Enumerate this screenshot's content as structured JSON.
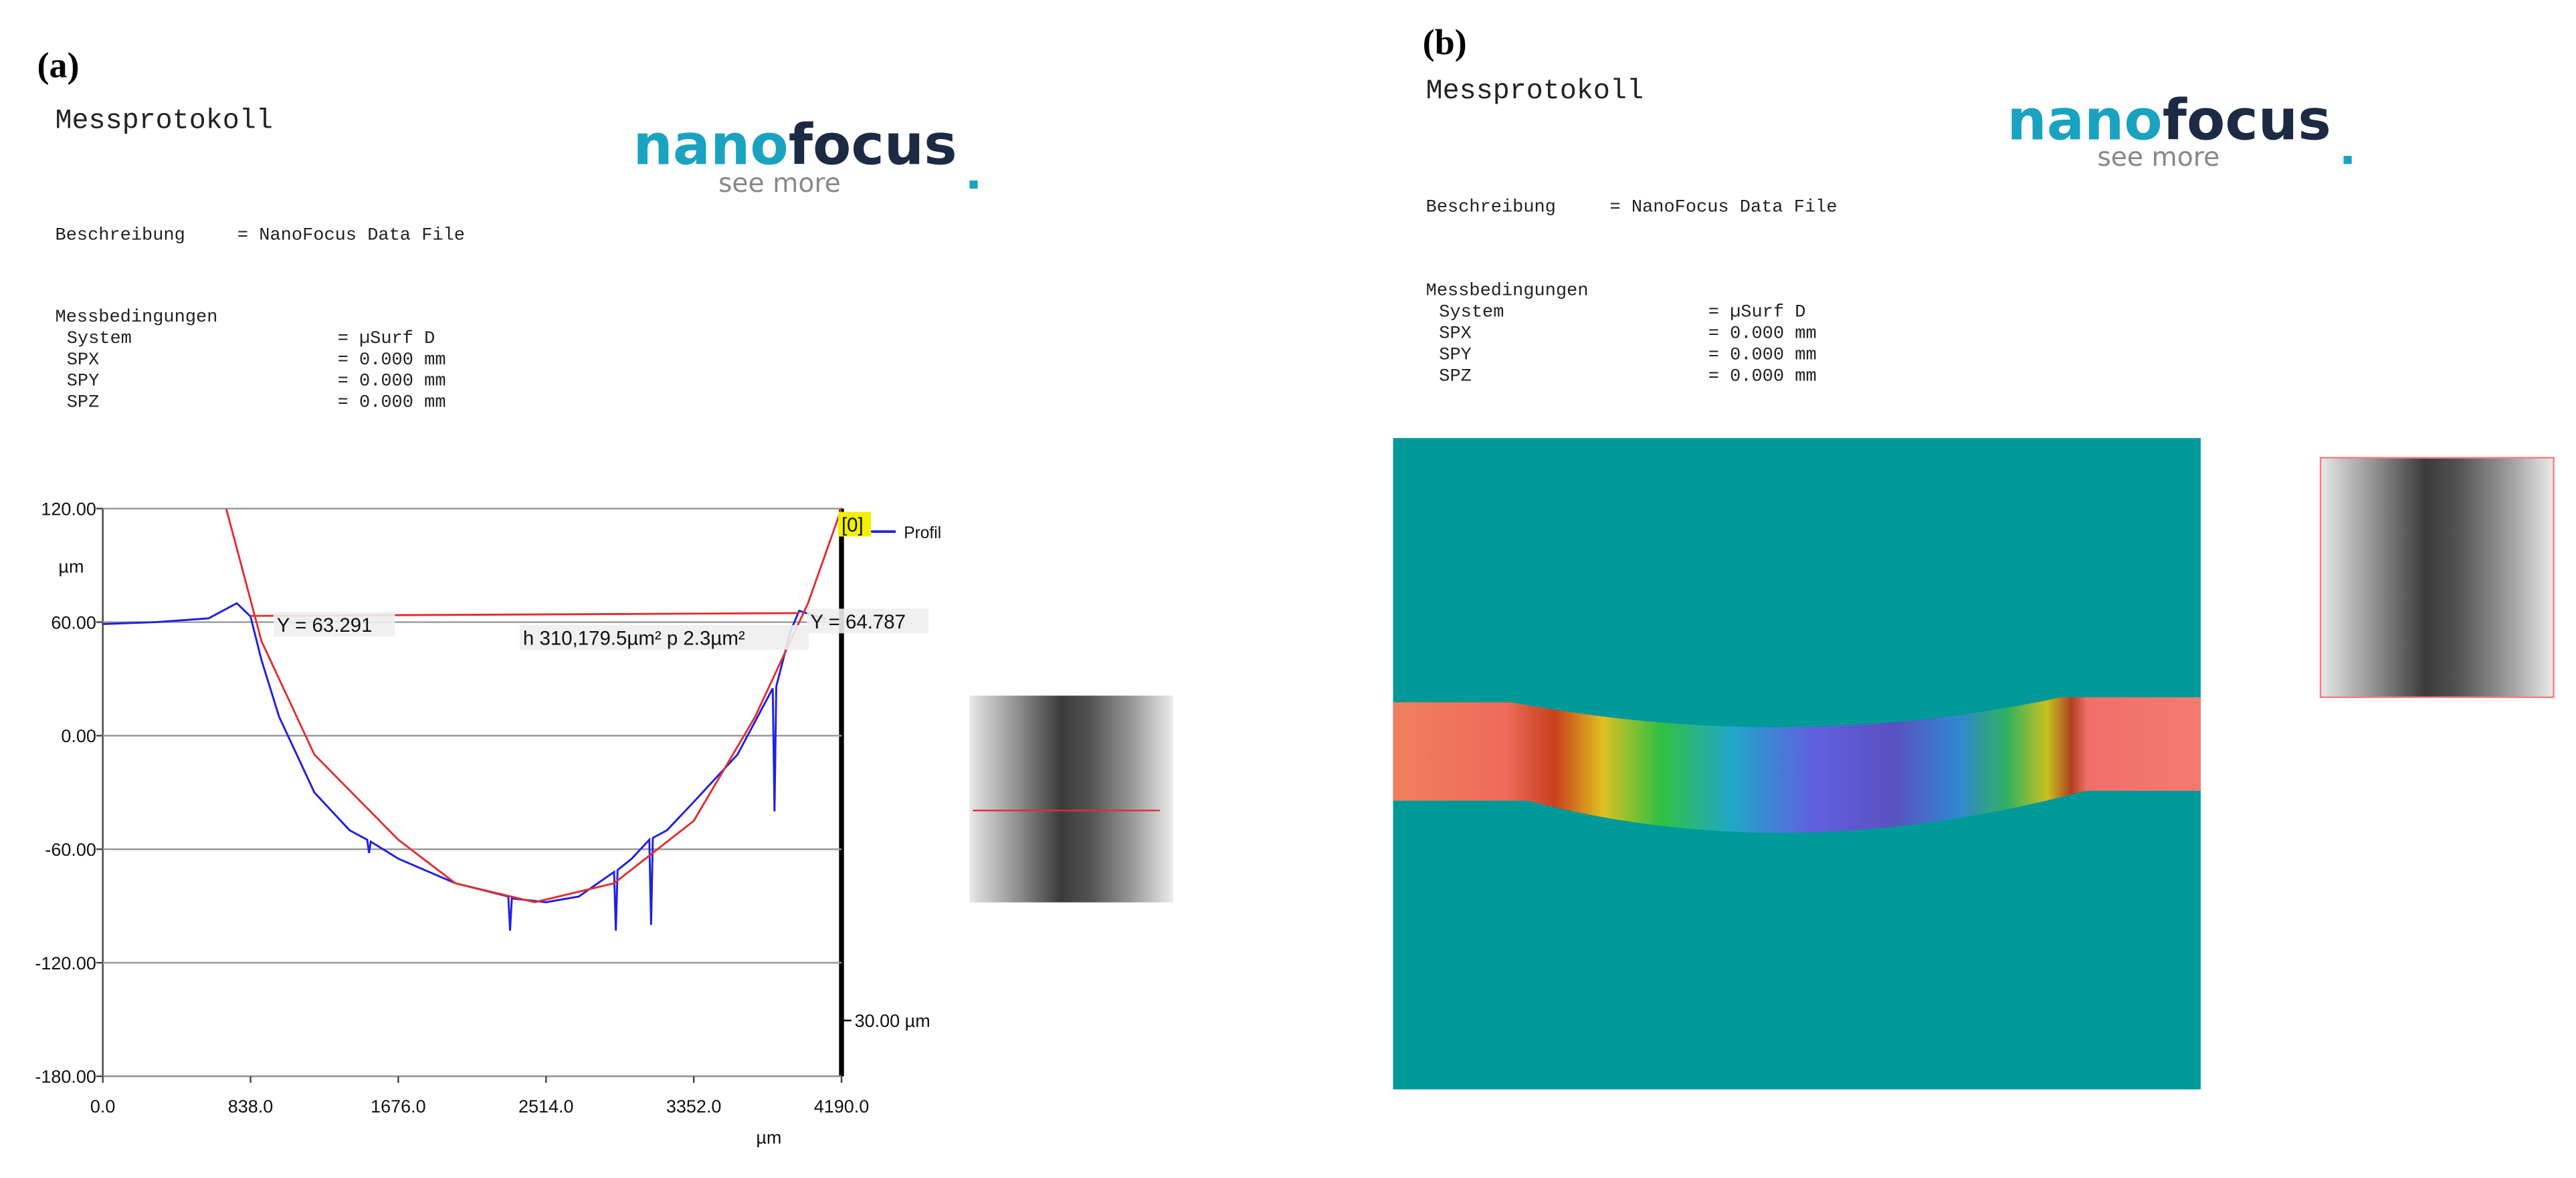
{
  "panels": [
    {
      "label": "(a)",
      "heading": "Messprotokoll",
      "logo": {
        "brand_light": "nano",
        "brand_dark": "focus",
        "tagline": "see more"
      },
      "description": {
        "label": "Beschreibung",
        "value": "= NanoFocus Data File"
      },
      "conditions": {
        "heading": "Messbedingungen",
        "rows": [
          [
            "System",
            "= µSurf D"
          ],
          [
            "SPX",
            "= 0.000 mm"
          ],
          [
            "SPY",
            "= 0.000 mm"
          ],
          [
            "SPZ",
            "= 0.000 mm"
          ]
        ]
      }
    },
    {
      "label": "(b)",
      "heading": "Messprotokoll",
      "logo": {
        "brand_light": "nano",
        "brand_dark": "focus",
        "tagline": "see more"
      },
      "description": {
        "label": "Beschreibung",
        "value": "= NanoFocus Data File"
      },
      "conditions": {
        "heading": "Messbedingungen",
        "rows": [
          [
            "System",
            "= µSurf D"
          ],
          [
            "SPX",
            "= 0.000 mm"
          ],
          [
            "SPY",
            "= 0.000 mm"
          ],
          [
            "SPZ",
            "= 0.000 mm"
          ]
        ]
      }
    }
  ],
  "chart_data": {
    "type": "line",
    "x_unit": "µm",
    "y_unit": "µm",
    "marker": "[0]",
    "scale_label": "30.00 µm",
    "annotations": [
      "Y = 63.291",
      "Y = 64.787",
      "h 310,179.5µm² p 2.3µm²"
    ],
    "xlim": [
      0,
      4190
    ],
    "ylim": [
      -180,
      120
    ],
    "xticks": [
      {
        "value": 0,
        "label": "0.0"
      },
      {
        "value": 838,
        "label": "838.0"
      },
      {
        "value": 1676,
        "label": "1676.0"
      },
      {
        "value": 2514,
        "label": "2514.0"
      },
      {
        "value": 3352,
        "label": "3352.0"
      },
      {
        "value": 4190,
        "label": "4190.0"
      }
    ],
    "yticks": [
      {
        "value": -180,
        "label": "-180.00"
      },
      {
        "value": -120,
        "label": "-120.00"
      },
      {
        "value": -60,
        "label": "-60.00"
      },
      {
        "value": 0,
        "label": "0.00"
      },
      {
        "value": 60,
        "label": "60.00"
      },
      {
        "value": 120,
        "label": "120.00"
      }
    ],
    "grid": true,
    "series": [
      {
        "name": "Profil",
        "color": "#2020e0",
        "x": [
          0,
          300,
          600,
          760,
          838,
          900,
          1000,
          1200,
          1400,
          1500,
          1510,
          1520,
          1676,
          2000,
          2300,
          2310,
          2320,
          2514,
          2700,
          2900,
          2910,
          2920,
          3000,
          3100,
          3110,
          3120,
          3200,
          3352,
          3600,
          3800,
          3810,
          3820,
          3900,
          3950,
          4050,
          4100
        ],
        "values": [
          59,
          60,
          62,
          70,
          63,
          40,
          10,
          -30,
          -50,
          -55,
          -62,
          -56,
          -65,
          -78,
          -85,
          -103,
          -86,
          -88,
          -85,
          -72,
          -103,
          -71,
          -65,
          -55,
          -100,
          -54,
          -50,
          -35,
          -10,
          25,
          -40,
          26,
          55,
          66,
          63,
          62
        ]
      },
      {
        "color": "#e03030",
        "x": [
          700,
          900,
          1200,
          1676,
          2000,
          2450,
          2900,
          3352,
          3700,
          4000,
          4190
        ],
        "values": [
          120,
          50,
          -10,
          -55,
          -78,
          -88,
          -78,
          -45,
          10,
          70,
          120
        ]
      },
      {
        "color": "#e03030",
        "x": [
          838,
          3950
        ],
        "values": [
          63.291,
          64.787
        ]
      }
    ]
  }
}
